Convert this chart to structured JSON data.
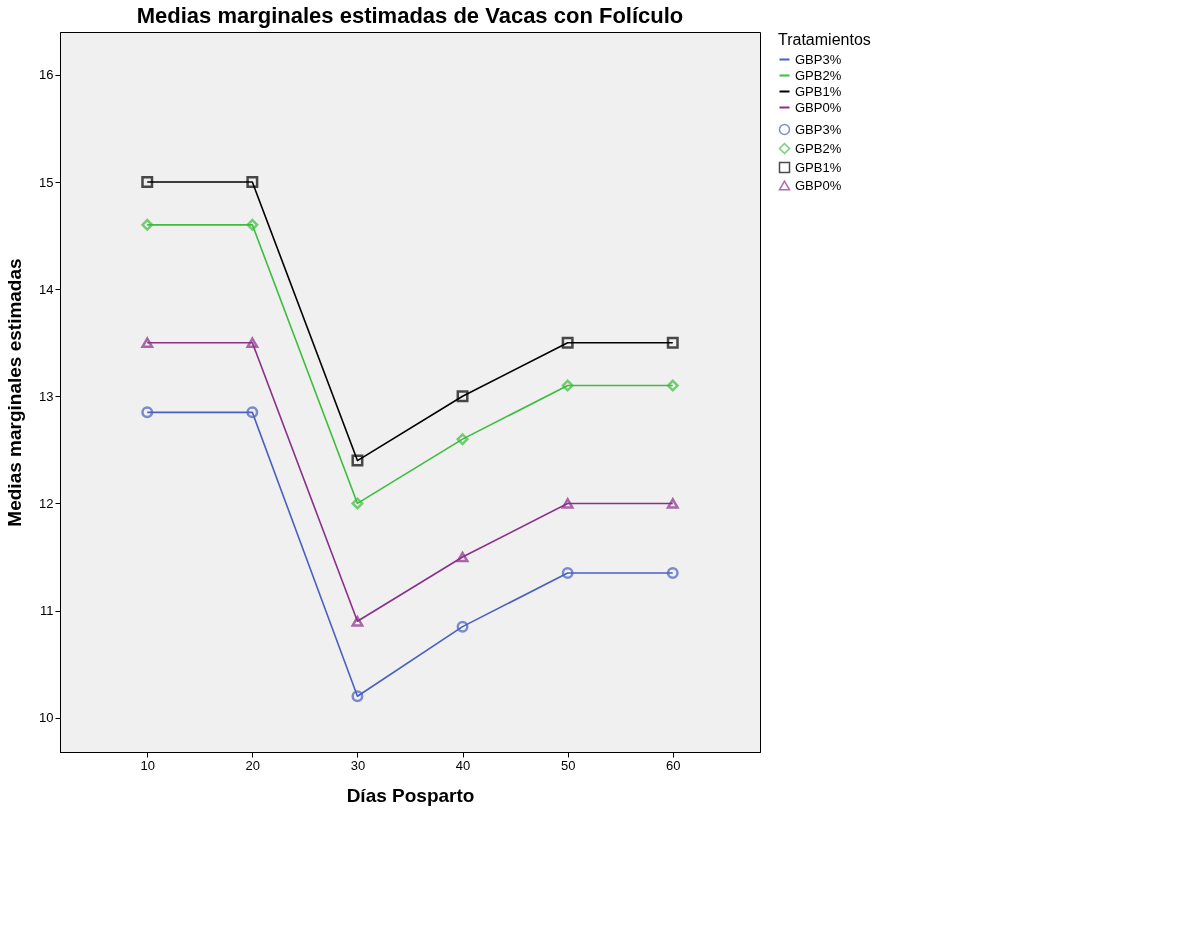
{
  "chart_data": {
    "type": "line",
    "title": "Medias marginales estimadas de Vacas con Folículo",
    "xlabel": "Días Posparto",
    "ylabel": "Medias marginales estimadas",
    "legend_title": "Tratamientos",
    "x": [
      10,
      20,
      30,
      40,
      50,
      60
    ],
    "series": [
      {
        "name": "GBP3%",
        "color": "#4a5fc1",
        "marker": "circle",
        "values": [
          12.85,
          12.85,
          10.2,
          10.85,
          11.35,
          11.35
        ]
      },
      {
        "name": "GPB2%",
        "color": "#3dbd3d",
        "marker": "diamond",
        "values": [
          14.6,
          14.6,
          12.0,
          12.6,
          13.1,
          13.1
        ]
      },
      {
        "name": "GPB1%",
        "color": "#000000",
        "marker": "square",
        "values": [
          15.0,
          15.0,
          12.4,
          13.0,
          13.5,
          13.5
        ]
      },
      {
        "name": "GBP0%",
        "color": "#8b2f8b",
        "marker": "triangle",
        "values": [
          13.5,
          13.5,
          10.9,
          11.5,
          12.0,
          12.0
        ]
      }
    ],
    "xlim": [
      1.7,
      68.3
    ],
    "xticks": [
      10,
      20,
      30,
      40,
      50,
      60
    ],
    "ylim": [
      9.68,
      16.4
    ],
    "yticks": [
      10,
      11,
      12,
      13,
      14,
      15,
      16
    ],
    "grid": false,
    "legend": "right",
    "line_style": "solid"
  }
}
